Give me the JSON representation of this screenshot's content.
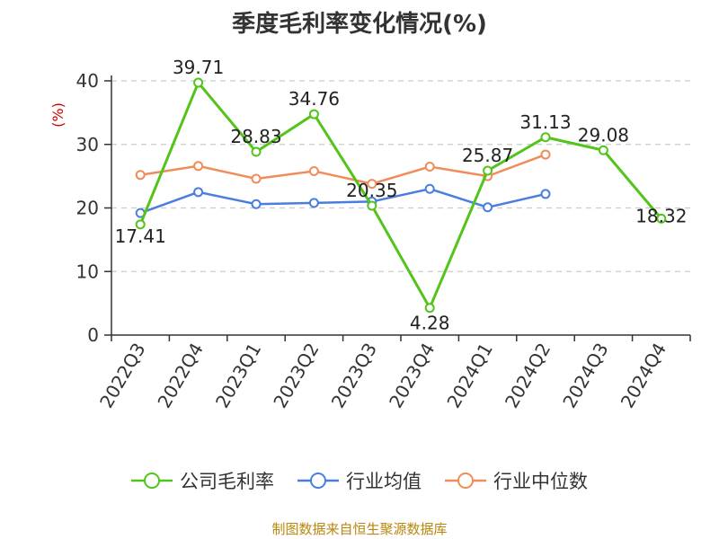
{
  "title": "季度毛利率变化情况(%)",
  "footer": "制图数据来自恒生聚源数据库",
  "colors": {
    "company": "#52c41a",
    "industry_avg": "#4a7ede",
    "industry_median": "#f08c5a",
    "ylabel": "#cc0000",
    "axis": "#333333",
    "grid": "#cccccc"
  },
  "chart_data": {
    "type": "line",
    "title": "季度毛利率变化情况(%)",
    "xlabel": "",
    "ylabel": "(%)",
    "ylim": [
      0,
      40
    ],
    "yticks": [
      0,
      10,
      20,
      30,
      40
    ],
    "grid": "horizontal dashed",
    "legend_position": "bottom",
    "categories": [
      "2022Q3",
      "2022Q4",
      "2023Q1",
      "2023Q2",
      "2023Q3",
      "2023Q4",
      "2024Q1",
      "2024Q2",
      "2024Q3",
      "2024Q4"
    ],
    "series": [
      {
        "name": "公司毛利率",
        "values": [
          17.41,
          39.71,
          28.83,
          34.76,
          20.35,
          4.28,
          25.87,
          31.13,
          29.08,
          18.32
        ],
        "labels": [
          "17.41",
          "39.71",
          "28.83",
          "34.76",
          "20.35",
          "4.28",
          "25.87",
          "31.13",
          "29.08",
          "18.32"
        ]
      },
      {
        "name": "行业均值",
        "values": [
          19.2,
          22.5,
          20.6,
          20.8,
          21.0,
          23.0,
          20.1,
          22.2,
          null,
          null
        ]
      },
      {
        "name": "行业中位数",
        "values": [
          25.2,
          26.6,
          24.6,
          25.8,
          23.8,
          26.5,
          25.0,
          28.4,
          null,
          null
        ]
      }
    ]
  }
}
